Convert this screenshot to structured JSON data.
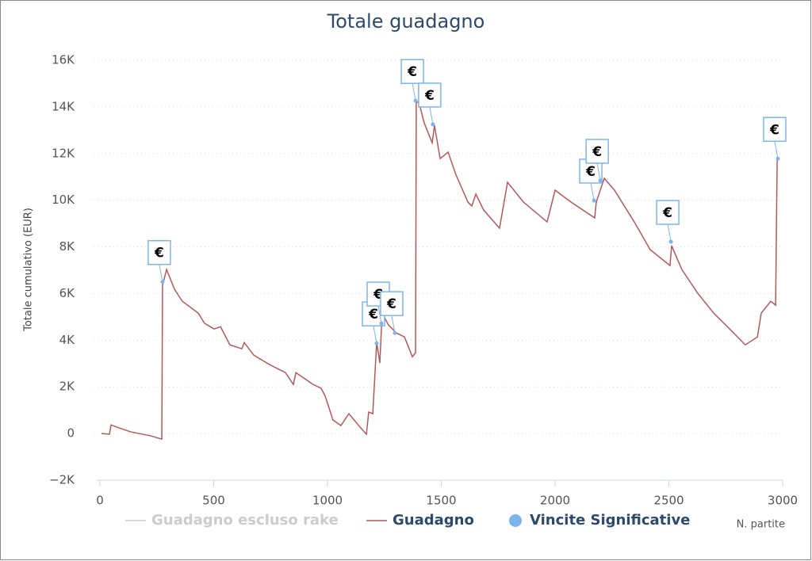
{
  "chart_data": {
    "type": "line",
    "title": "Totale guadagno",
    "ylabel": "Totale cumulativo (EUR)",
    "xlabel": "N. partite",
    "xlim": [
      0,
      3000
    ],
    "xticks": [
      0,
      500,
      1000,
      1500,
      2000,
      2500,
      3000
    ],
    "ylim": [
      -2000,
      16000
    ],
    "yticks": [
      {
        "value": -2000,
        "label": "−2K"
      },
      0,
      {
        "value": 2000,
        "label": "2K"
      },
      {
        "value": 4000,
        "label": "4K"
      },
      {
        "value": 6000,
        "label": "6K"
      },
      {
        "value": 8000,
        "label": "8K"
      },
      {
        "value": 10000,
        "label": "10K"
      },
      {
        "value": 12000,
        "label": "12K"
      },
      {
        "value": 14000,
        "label": "14K"
      },
      {
        "value": 16000,
        "label": "16K"
      }
    ],
    "grid": true,
    "legend": "bottom",
    "series": [
      {
        "name": "Guadagno escluso rake",
        "color": "#cccccc",
        "visible": false
      },
      {
        "name": "Guadagno",
        "color": "#b5585a",
        "x": [
          7,
          42,
          49,
          84,
          136,
          223,
          272,
          275,
          293,
          328,
          362,
          432,
          460,
          502,
          530,
          571,
          624,
          634,
          676,
          746,
          815,
          850,
          861,
          937,
          972,
          990,
          1024,
          1059,
          1094,
          1146,
          1171,
          1181,
          1199,
          1216,
          1230,
          1240,
          1268,
          1303,
          1338,
          1373,
          1387,
          1390,
          1401,
          1425,
          1460,
          1470,
          1495,
          1530,
          1564,
          1617,
          1634,
          1652,
          1686,
          1756,
          1791,
          1861,
          1965,
          2000,
          2070,
          2174,
          2181,
          2216,
          2261,
          2348,
          2418,
          2505,
          2512,
          2557,
          2627,
          2697,
          2767,
          2836,
          2889,
          2906,
          2948,
          2969,
          2976
        ],
        "values": [
          0,
          -30,
          370,
          240,
          70,
          -100,
          -240,
          6350,
          7030,
          6180,
          5670,
          5160,
          4720,
          4480,
          4580,
          3800,
          3630,
          3900,
          3360,
          2950,
          2610,
          2100,
          2610,
          2100,
          1940,
          1600,
          580,
          340,
          850,
          240,
          -30,
          920,
          850,
          3900,
          3020,
          5160,
          4650,
          4310,
          4140,
          3290,
          3460,
          14160,
          14230,
          13310,
          12460,
          13210,
          11780,
          12060,
          11100,
          9920,
          9750,
          10260,
          9580,
          8800,
          10770,
          9920,
          9070,
          10430,
          9920,
          9240,
          9920,
          10940,
          10430,
          9070,
          7880,
          7200,
          8050,
          7030,
          6010,
          5160,
          4480,
          3800,
          4140,
          5160,
          5670,
          5500,
          11780
        ]
      },
      {
        "name": "Vincite Significative",
        "color": "#7cb5ec",
        "type": "flags",
        "label": "€",
        "x": [
          275,
          1216,
          1237,
          1296,
          1387,
          1463,
          2171,
          2199,
          2509,
          2979
        ],
        "values": [
          6500,
          3870,
          4720,
          4310,
          14260,
          13250,
          9990,
          10840,
          8220,
          11780
        ]
      }
    ]
  }
}
